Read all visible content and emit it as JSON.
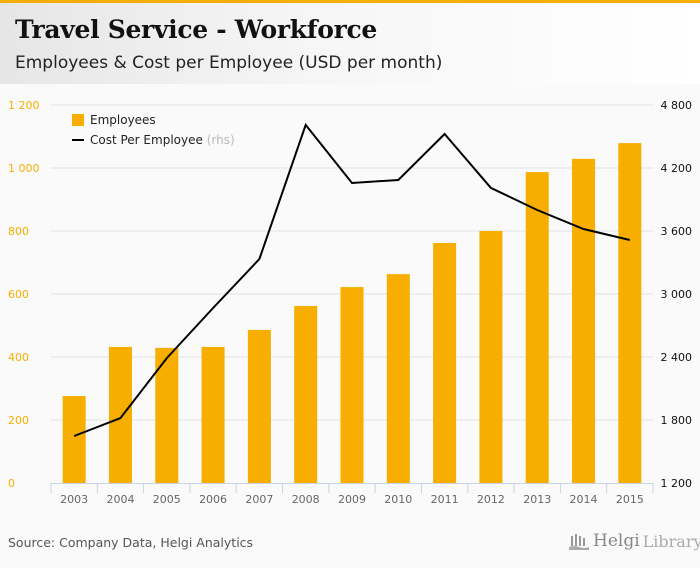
{
  "header": {
    "title": "Travel Service - Workforce",
    "subtitle": "Employees & Cost per Employee (USD per month)"
  },
  "footer": {
    "source": "Source: Company Data, Helgi Analytics",
    "logo_bold": "Helgi",
    "logo_light": "Library."
  },
  "colors": {
    "accent": "#f7ae00",
    "line": "#000000",
    "grid": "#e3e3e3",
    "left_axis_text": "#f7ae00",
    "right_axis_text": "#111111"
  },
  "chart_data": {
    "type": "bar+line",
    "title": "Travel Service - Workforce",
    "subtitle": "Employees & Cost per Employee (USD per month)",
    "categories": [
      "2003",
      "2004",
      "2005",
      "2006",
      "2007",
      "2008",
      "2009",
      "2010",
      "2011",
      "2012",
      "2013",
      "2014",
      "2015"
    ],
    "series": [
      {
        "name": "Employees",
        "type": "bar",
        "axis": "left",
        "values": [
          276,
          432,
          429,
          432,
          486,
          562,
          622,
          663,
          762,
          800,
          987,
          1029,
          1079
        ]
      },
      {
        "name": "Cost Per Employee",
        "name_suffix": "(rhs)",
        "type": "line",
        "axis": "right",
        "values": [
          1648,
          1819,
          2390,
          2867,
          3333,
          4610,
          4057,
          4086,
          4524,
          4010,
          3800,
          3619,
          3514
        ]
      }
    ],
    "left_axis": {
      "ylim": [
        0,
        1200
      ],
      "ticks": [
        0,
        200,
        400,
        600,
        800,
        1000,
        1200
      ],
      "tick_labels": [
        "0",
        "200",
        "400",
        "600",
        "800",
        "1 000",
        "1 200"
      ]
    },
    "right_axis": {
      "ylim": [
        1200,
        4800
      ],
      "ticks": [
        1200,
        1800,
        2400,
        3000,
        3600,
        4200,
        4800
      ],
      "tick_labels": [
        "1 200",
        "1 800",
        "2 400",
        "3 000",
        "3 600",
        "4 200",
        "4 800"
      ]
    },
    "xlabel": "",
    "ylabel": "",
    "grid": true,
    "legend_position": "top-left"
  }
}
